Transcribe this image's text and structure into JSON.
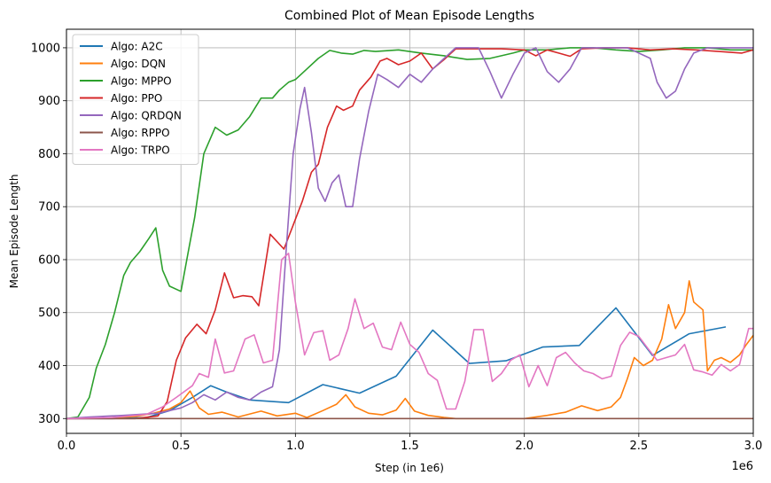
{
  "chart_data": {
    "type": "line",
    "title": "Combined Plot of Mean Episode Lengths",
    "xlabel": "Step (in 1e6)",
    "ylabel": "Mean Episode Length",
    "x_offset_text": "1e6",
    "xlim": [
      0,
      3.0
    ],
    "ylim": [
      272,
      1035
    ],
    "x_ticks": [
      0,
      0.5,
      1.0,
      1.5,
      2.0,
      2.5,
      3.0
    ],
    "x_tick_labels": [
      "0.0",
      "0.5",
      "1.0",
      "1.5",
      "2.0",
      "2.5",
      "3.0"
    ],
    "y_ticks": [
      300,
      400,
      500,
      600,
      700,
      800,
      900,
      1000
    ],
    "y_tick_labels": [
      "300",
      "400",
      "500",
      "600",
      "700",
      "800",
      "900",
      "1000"
    ],
    "grid": true,
    "legend_position": "top-left",
    "series": [
      {
        "name": "Algo: A2C",
        "color": "#1f77b4",
        "points": [
          [
            0.0,
            300
          ],
          [
            0.2,
            300
          ],
          [
            0.35,
            302
          ],
          [
            0.45,
            315
          ],
          [
            0.55,
            340
          ],
          [
            0.63,
            362
          ],
          [
            0.7,
            350
          ],
          [
            0.8,
            335
          ],
          [
            0.97,
            330
          ],
          [
            1.12,
            364
          ],
          [
            1.28,
            348
          ],
          [
            1.44,
            380
          ],
          [
            1.6,
            467
          ],
          [
            1.76,
            404
          ],
          [
            1.92,
            409
          ],
          [
            2.08,
            435
          ],
          [
            2.24,
            438
          ],
          [
            2.4,
            509
          ],
          [
            2.56,
            419
          ],
          [
            2.72,
            460
          ],
          [
            2.88,
            473
          ]
        ]
      },
      {
        "name": "Algo: DQN",
        "color": "#ff7f0e",
        "points": [
          [
            0.0,
            300
          ],
          [
            0.15,
            301
          ],
          [
            0.3,
            304
          ],
          [
            0.38,
            310
          ],
          [
            0.45,
            318
          ],
          [
            0.5,
            330
          ],
          [
            0.54,
            352
          ],
          [
            0.58,
            320
          ],
          [
            0.62,
            308
          ],
          [
            0.68,
            312
          ],
          [
            0.75,
            303
          ],
          [
            0.85,
            314
          ],
          [
            0.92,
            305
          ],
          [
            1.0,
            310
          ],
          [
            1.05,
            302
          ],
          [
            1.12,
            315
          ],
          [
            1.18,
            327
          ],
          [
            1.22,
            345
          ],
          [
            1.26,
            322
          ],
          [
            1.32,
            310
          ],
          [
            1.38,
            307
          ],
          [
            1.44,
            316
          ],
          [
            1.48,
            338
          ],
          [
            1.52,
            314
          ],
          [
            1.58,
            306
          ],
          [
            1.65,
            302
          ],
          [
            1.7,
            300
          ],
          [
            1.8,
            300
          ],
          [
            2.0,
            300
          ],
          [
            2.1,
            306
          ],
          [
            2.18,
            312
          ],
          [
            2.25,
            324
          ],
          [
            2.32,
            315
          ],
          [
            2.38,
            322
          ],
          [
            2.42,
            340
          ],
          [
            2.45,
            375
          ],
          [
            2.48,
            415
          ],
          [
            2.52,
            400
          ],
          [
            2.56,
            410
          ],
          [
            2.6,
            450
          ],
          [
            2.63,
            515
          ],
          [
            2.66,
            470
          ],
          [
            2.7,
            500
          ],
          [
            2.72,
            560
          ],
          [
            2.74,
            520
          ],
          [
            2.78,
            505
          ],
          [
            2.8,
            390
          ],
          [
            2.83,
            410
          ],
          [
            2.86,
            415
          ],
          [
            2.9,
            406
          ],
          [
            2.94,
            420
          ],
          [
            2.97,
            440
          ],
          [
            3.0,
            457
          ]
        ]
      },
      {
        "name": "Algo: MPPO",
        "color": "#2ca02c",
        "points": [
          [
            0.0,
            300
          ],
          [
            0.05,
            303
          ],
          [
            0.1,
            340
          ],
          [
            0.13,
            395
          ],
          [
            0.17,
            440
          ],
          [
            0.21,
            500
          ],
          [
            0.25,
            570
          ],
          [
            0.28,
            595
          ],
          [
            0.32,
            615
          ],
          [
            0.36,
            640
          ],
          [
            0.39,
            660
          ],
          [
            0.42,
            580
          ],
          [
            0.45,
            550
          ],
          [
            0.5,
            540
          ],
          [
            0.53,
            610
          ],
          [
            0.56,
            680
          ],
          [
            0.6,
            800
          ],
          [
            0.65,
            850
          ],
          [
            0.7,
            835
          ],
          [
            0.75,
            845
          ],
          [
            0.8,
            870
          ],
          [
            0.85,
            905
          ],
          [
            0.9,
            905
          ],
          [
            0.93,
            920
          ],
          [
            0.97,
            935
          ],
          [
            1.0,
            940
          ],
          [
            1.05,
            960
          ],
          [
            1.1,
            980
          ],
          [
            1.15,
            995
          ],
          [
            1.2,
            990
          ],
          [
            1.25,
            988
          ],
          [
            1.3,
            995
          ],
          [
            1.35,
            993
          ],
          [
            1.45,
            996
          ],
          [
            1.55,
            990
          ],
          [
            1.65,
            985
          ],
          [
            1.75,
            978
          ],
          [
            1.85,
            980
          ],
          [
            1.95,
            990
          ],
          [
            2.0,
            996
          ],
          [
            2.1,
            996
          ],
          [
            2.2,
            1000
          ],
          [
            2.3,
            1000
          ],
          [
            2.4,
            996
          ],
          [
            2.5,
            993
          ],
          [
            2.6,
            996
          ],
          [
            2.7,
            1000
          ],
          [
            2.8,
            1000
          ],
          [
            2.9,
            996
          ],
          [
            3.0,
            996
          ]
        ]
      },
      {
        "name": "Algo: PPO",
        "color": "#d62728",
        "points": [
          [
            0.0,
            300
          ],
          [
            0.3,
            300
          ],
          [
            0.4,
            305
          ],
          [
            0.44,
            332
          ],
          [
            0.48,
            410
          ],
          [
            0.52,
            452
          ],
          [
            0.57,
            478
          ],
          [
            0.61,
            460
          ],
          [
            0.65,
            505
          ],
          [
            0.69,
            575
          ],
          [
            0.73,
            528
          ],
          [
            0.77,
            532
          ],
          [
            0.81,
            530
          ],
          [
            0.84,
            513
          ],
          [
            0.89,
            648
          ],
          [
            0.95,
            620
          ],
          [
            0.99,
            665
          ],
          [
            1.03,
            710
          ],
          [
            1.07,
            765
          ],
          [
            1.1,
            780
          ],
          [
            1.14,
            850
          ],
          [
            1.18,
            890
          ],
          [
            1.21,
            882
          ],
          [
            1.25,
            890
          ],
          [
            1.28,
            920
          ],
          [
            1.33,
            945
          ],
          [
            1.37,
            975
          ],
          [
            1.4,
            980
          ],
          [
            1.45,
            968
          ],
          [
            1.5,
            975
          ],
          [
            1.55,
            990
          ],
          [
            1.6,
            960
          ],
          [
            1.65,
            978
          ],
          [
            1.7,
            998
          ],
          [
            1.8,
            998
          ],
          [
            1.9,
            998
          ],
          [
            2.0,
            996
          ],
          [
            2.05,
            985
          ],
          [
            2.1,
            996
          ],
          [
            2.15,
            990
          ],
          [
            2.2,
            984
          ],
          [
            2.25,
            998
          ],
          [
            2.35,
            1000
          ],
          [
            2.45,
            1000
          ],
          [
            2.55,
            996
          ],
          [
            2.65,
            998
          ],
          [
            2.75,
            996
          ],
          [
            2.85,
            993
          ],
          [
            2.95,
            990
          ],
          [
            3.0,
            996
          ]
        ]
      },
      {
        "name": "Algo: QRDQN",
        "color": "#9467bd",
        "points": [
          [
            0.0,
            300
          ],
          [
            0.1,
            303
          ],
          [
            0.25,
            306
          ],
          [
            0.4,
            310
          ],
          [
            0.5,
            320
          ],
          [
            0.55,
            330
          ],
          [
            0.6,
            345
          ],
          [
            0.65,
            335
          ],
          [
            0.7,
            350
          ],
          [
            0.75,
            340
          ],
          [
            0.8,
            335
          ],
          [
            0.85,
            350
          ],
          [
            0.9,
            360
          ],
          [
            0.93,
            430
          ],
          [
            0.96,
            620
          ],
          [
            0.99,
            800
          ],
          [
            1.02,
            885
          ],
          [
            1.04,
            925
          ],
          [
            1.07,
            840
          ],
          [
            1.1,
            735
          ],
          [
            1.13,
            710
          ],
          [
            1.16,
            745
          ],
          [
            1.19,
            760
          ],
          [
            1.22,
            700
          ],
          [
            1.25,
            700
          ],
          [
            1.28,
            790
          ],
          [
            1.32,
            880
          ],
          [
            1.36,
            950
          ],
          [
            1.4,
            940
          ],
          [
            1.45,
            925
          ],
          [
            1.5,
            950
          ],
          [
            1.55,
            935
          ],
          [
            1.6,
            960
          ],
          [
            1.65,
            980
          ],
          [
            1.7,
            1000
          ],
          [
            1.8,
            1000
          ],
          [
            1.85,
            955
          ],
          [
            1.9,
            905
          ],
          [
            1.95,
            950
          ],
          [
            2.0,
            990
          ],
          [
            2.05,
            1000
          ],
          [
            2.1,
            955
          ],
          [
            2.15,
            935
          ],
          [
            2.2,
            960
          ],
          [
            2.25,
            1000
          ],
          [
            2.35,
            1000
          ],
          [
            2.45,
            1000
          ],
          [
            2.55,
            980
          ],
          [
            2.58,
            935
          ],
          [
            2.62,
            905
          ],
          [
            2.66,
            918
          ],
          [
            2.7,
            960
          ],
          [
            2.74,
            990
          ],
          [
            2.8,
            1000
          ],
          [
            2.9,
            1000
          ],
          [
            3.0,
            1000
          ]
        ]
      },
      {
        "name": "Algo: RPPO",
        "color": "#8c564b",
        "points": [
          [
            0.0,
            300
          ],
          [
            3.0,
            300
          ]
        ]
      },
      {
        "name": "Algo: TRPO",
        "color": "#e377c2",
        "points": [
          [
            0.0,
            300
          ],
          [
            0.2,
            302
          ],
          [
            0.35,
            308
          ],
          [
            0.42,
            322
          ],
          [
            0.48,
            340
          ],
          [
            0.55,
            362
          ],
          [
            0.58,
            385
          ],
          [
            0.62,
            378
          ],
          [
            0.65,
            450
          ],
          [
            0.69,
            386
          ],
          [
            0.73,
            390
          ],
          [
            0.78,
            450
          ],
          [
            0.82,
            458
          ],
          [
            0.86,
            405
          ],
          [
            0.9,
            410
          ],
          [
            0.94,
            600
          ],
          [
            0.97,
            612
          ],
          [
            1.0,
            520
          ],
          [
            1.04,
            420
          ],
          [
            1.08,
            462
          ],
          [
            1.12,
            466
          ],
          [
            1.15,
            410
          ],
          [
            1.19,
            420
          ],
          [
            1.23,
            470
          ],
          [
            1.26,
            526
          ],
          [
            1.3,
            470
          ],
          [
            1.34,
            480
          ],
          [
            1.38,
            435
          ],
          [
            1.42,
            430
          ],
          [
            1.46,
            482
          ],
          [
            1.5,
            440
          ],
          [
            1.54,
            425
          ],
          [
            1.58,
            385
          ],
          [
            1.62,
            372
          ],
          [
            1.66,
            318
          ],
          [
            1.7,
            318
          ],
          [
            1.74,
            370
          ],
          [
            1.78,
            468
          ],
          [
            1.82,
            468
          ],
          [
            1.86,
            370
          ],
          [
            1.9,
            385
          ],
          [
            1.94,
            410
          ],
          [
            1.98,
            420
          ],
          [
            2.02,
            360
          ],
          [
            2.06,
            400
          ],
          [
            2.1,
            362
          ],
          [
            2.14,
            415
          ],
          [
            2.18,
            425
          ],
          [
            2.22,
            405
          ],
          [
            2.26,
            390
          ],
          [
            2.3,
            385
          ],
          [
            2.34,
            375
          ],
          [
            2.38,
            380
          ],
          [
            2.42,
            438
          ],
          [
            2.46,
            463
          ],
          [
            2.5,
            455
          ],
          [
            2.54,
            432
          ],
          [
            2.58,
            410
          ],
          [
            2.62,
            415
          ],
          [
            2.66,
            420
          ],
          [
            2.7,
            440
          ],
          [
            2.74,
            392
          ],
          [
            2.78,
            388
          ],
          [
            2.82,
            382
          ],
          [
            2.86,
            402
          ],
          [
            2.9,
            390
          ],
          [
            2.94,
            402
          ],
          [
            2.98,
            470
          ],
          [
            3.0,
            470
          ]
        ]
      }
    ]
  }
}
